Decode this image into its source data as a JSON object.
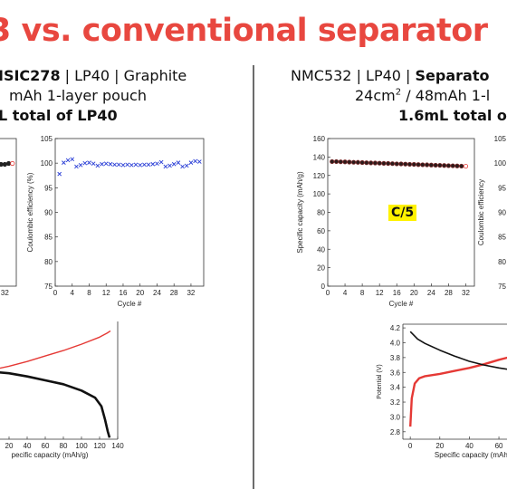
{
  "title": "3 vs. conventional separator",
  "left_header": {
    "line1_part1": "ISIC278",
    "line1_part2": " | LP40 | Graphite",
    "line2": "mAh 1-layer pouch",
    "line3": "L total of LP40"
  },
  "right_header": {
    "line1_part1": "NMC532 | LP40 | ",
    "line1_part2": "Separato",
    "line2_a": "24cm",
    "line2_sup": "2",
    "line2_b": " / 48mAh 1-l",
    "line3": "1.6mL total o"
  },
  "rate_label": "C/5",
  "colors": {
    "title": "#e8473f",
    "charge": "#e53935",
    "discharge": "#111111",
    "ce_marker": "#2b3fd6",
    "badge": "#fff200"
  },
  "chart_data": [
    {
      "id": "left-ce",
      "type": "scatter",
      "ylabel": "Coulombic efficiency (%)",
      "xlabel": "Cycle #",
      "xlim": [
        0,
        35
      ],
      "ylim": [
        75,
        105
      ],
      "xticks": [
        "0",
        "4",
        "8",
        "12",
        "16",
        "20",
        "24",
        "28",
        "32"
      ],
      "yticks": [
        "75",
        "80",
        "85",
        "90",
        "95",
        "100",
        "105"
      ],
      "marker": "x",
      "series": [
        {
          "x": [
            1,
            2,
            3,
            4,
            5,
            6,
            7,
            8,
            9,
            10,
            11,
            12,
            13,
            14,
            15,
            16,
            17,
            18,
            19,
            20,
            21,
            22,
            23,
            24,
            25,
            26,
            27,
            28,
            29,
            30,
            31,
            32,
            33,
            34
          ],
          "values": [
            97.8,
            100.1,
            100.6,
            100.8,
            99.3,
            99.6,
            100.0,
            100.1,
            99.9,
            99.5,
            99.8,
            99.9,
            99.8,
            99.7,
            99.7,
            99.6,
            99.7,
            99.6,
            99.7,
            99.6,
            99.7,
            99.7,
            99.8,
            99.9,
            100.2,
            99.3,
            99.5,
            99.8,
            100.1,
            99.3,
            99.5,
            100.1,
            100.4,
            100.3
          ]
        }
      ]
    },
    {
      "id": "left-capacity",
      "type": "scatter",
      "xticks": [
        "32"
      ],
      "ylim": [
        0,
        160
      ],
      "series": [
        {
          "x": [
            29,
            30,
            31,
            32,
            33,
            34
          ],
          "values": [
            132,
            132,
            132,
            132,
            133,
            133
          ]
        }
      ]
    },
    {
      "id": "left-voltage",
      "type": "line",
      "xlabel": "pecific capacity (mAh/g)",
      "xlim": [
        -10,
        140
      ],
      "ylim": [
        2.8,
        4.3
      ],
      "xticks": [
        "0",
        "20",
        "40",
        "60",
        "80",
        "100",
        "120",
        "140"
      ],
      "series": [
        {
          "name_hidden": "charge",
          "x": [
            -10,
            0,
            20,
            40,
            60,
            80,
            100,
            120,
            128,
            132
          ],
          "values": [
            3.65,
            3.68,
            3.73,
            3.79,
            3.86,
            3.93,
            4.01,
            4.1,
            4.15,
            4.18
          ]
        },
        {
          "name_hidden": "discharge",
          "x": [
            -10,
            0,
            20,
            40,
            60,
            80,
            100,
            115,
            122,
            126,
            129,
            131
          ],
          "values": [
            3.62,
            3.66,
            3.64,
            3.6,
            3.55,
            3.5,
            3.42,
            3.33,
            3.22,
            3.05,
            2.9,
            2.82
          ]
        }
      ]
    },
    {
      "id": "right-capacity",
      "type": "scatter",
      "ylabel": "Specific capacity (mAh/g)",
      "xlabel": "Cycle #",
      "xlim": [
        0,
        34
      ],
      "ylim": [
        0,
        160
      ],
      "xticks": [
        "0",
        "4",
        "8",
        "12",
        "16",
        "20",
        "24",
        "28",
        "32"
      ],
      "yticks": [
        "0",
        "20",
        "40",
        "60",
        "80",
        "100",
        "120",
        "140",
        "160"
      ],
      "series": [
        {
          "x": [
            1,
            2,
            3,
            4,
            5,
            6,
            7,
            8,
            9,
            10,
            11,
            12,
            13,
            14,
            15,
            16,
            17,
            18,
            19,
            20,
            21,
            22,
            23,
            24,
            25,
            26,
            27,
            28,
            29,
            30,
            31,
            32
          ],
          "values": [
            135,
            135,
            134.8,
            134.7,
            134.5,
            134.3,
            134.2,
            134.0,
            133.8,
            133.6,
            133.5,
            133.3,
            133.1,
            133.0,
            132.8,
            132.6,
            132.5,
            132.3,
            132.1,
            132.0,
            131.8,
            131.6,
            131.5,
            131.3,
            131.1,
            131.0,
            130.8,
            130.6,
            130.5,
            130.3,
            130.1,
            130.0
          ]
        }
      ]
    },
    {
      "id": "right-ce",
      "type": "scatter",
      "ylabel": "Coulombic efficiency",
      "yticks": [
        "75",
        "80",
        "85",
        "90",
        "95",
        "100",
        "105"
      ],
      "ylim": [
        75,
        105
      ]
    },
    {
      "id": "right-voltage",
      "type": "line",
      "ylabel": "Potential (V)",
      "xlabel": "Specific capacity (mAh/g)",
      "xlim": [
        -5,
        90
      ],
      "ylim": [
        2.7,
        4.25
      ],
      "xticks": [
        "0",
        "20",
        "40",
        "60",
        "80"
      ],
      "yticks": [
        "2.8",
        "3.0",
        "3.2",
        "3.4",
        "3.6",
        "3.8",
        "4.0",
        "4.2"
      ],
      "series": [
        {
          "name_hidden": "charge",
          "x": [
            0,
            1,
            3,
            6,
            10,
            20,
            30,
            40,
            50,
            60,
            70,
            80,
            90
          ],
          "values": [
            2.87,
            3.25,
            3.45,
            3.52,
            3.55,
            3.58,
            3.62,
            3.66,
            3.71,
            3.77,
            3.82,
            3.86,
            3.92
          ]
        },
        {
          "name_hidden": "discharge",
          "x": [
            0,
            5,
            10,
            20,
            30,
            40,
            50,
            60,
            70,
            80,
            90
          ],
          "values": [
            4.15,
            4.05,
            3.99,
            3.9,
            3.82,
            3.75,
            3.7,
            3.66,
            3.63,
            3.6,
            3.58
          ]
        }
      ]
    }
  ]
}
